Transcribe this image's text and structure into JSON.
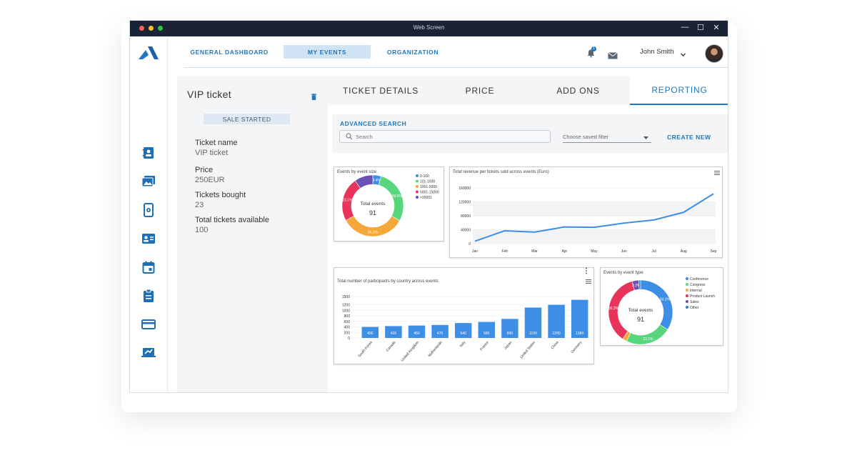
{
  "window": {
    "title": "Web Screen",
    "controls": [
      "—",
      "☐",
      "✕"
    ],
    "dot_colors": [
      "#ff5f57",
      "#febc2e",
      "#28c840"
    ]
  },
  "sidebar": {
    "icons": [
      "contact-book-icon",
      "photo-gallery-icon",
      "device-settings-icon",
      "id-card-icon",
      "calendar-icon",
      "clipboard-icon",
      "credit-card-icon",
      "presentation-icon"
    ]
  },
  "topnav": {
    "items": [
      {
        "label": "GENERAL DASHBOARD",
        "active": false
      },
      {
        "label": "MY EVENTS",
        "active": true
      },
      {
        "label": "ORGANIZATION",
        "active": false
      }
    ],
    "notifications_count": "1",
    "user_name": "John Smith"
  },
  "ticket": {
    "title": "VIP ticket",
    "status": "SALE STARTED",
    "fields": [
      {
        "label": "Ticket name",
        "value": "VIP ticket"
      },
      {
        "label": "Price",
        "value": "250EUR"
      },
      {
        "label": "Tickets bought",
        "value": "23"
      },
      {
        "label": "Total tickets available",
        "value": "100"
      }
    ]
  },
  "tabs": [
    {
      "label": "TICKET DETAILS",
      "active": false
    },
    {
      "label": "PRICE",
      "active": false
    },
    {
      "label": "ADD ONS",
      "active": false
    },
    {
      "label": "REPORTING",
      "active": true
    }
  ],
  "search": {
    "heading": "ADVANCED SEARCH",
    "placeholder": "Search",
    "filter_placeholder": "Choose saved filter",
    "create_label": "CREATE NEW"
  },
  "accent_color": "#1f78c1",
  "chart_data": [
    {
      "type": "pie",
      "title": "Events by event size",
      "center_label": "Total events",
      "center_value": "91",
      "labels": [
        "0-100",
        "101-1000",
        "1001-5000",
        "5001-15000",
        ">15001"
      ],
      "values": [
        4.4,
        28.6,
        34.1,
        23.1,
        9.8
      ],
      "slice_labels": [
        "4.4%",
        "28.6%",
        "34.1%",
        "23.1%",
        ""
      ],
      "colors": [
        "#3d8ee6",
        "#57d67c",
        "#f5a83a",
        "#e8335a",
        "#6a4fb5"
      ],
      "legend": "right"
    },
    {
      "type": "line",
      "title": "Total revenue per tickets sold across events (Euro)",
      "x": [
        "Jan",
        "Feb",
        "Mar",
        "Apr",
        "May",
        "Jun",
        "Jul",
        "Aug",
        "Sep"
      ],
      "series": [
        {
          "values": [
            7000,
            37000,
            33000,
            48000,
            47000,
            59000,
            68000,
            90000,
            143000
          ]
        }
      ],
      "yticks": [
        "0",
        "40000",
        "80000",
        "120000",
        "160000"
      ],
      "ylim": [
        0,
        160000
      ],
      "grid": true
    },
    {
      "type": "bar",
      "title": "Total number of participants by country across events",
      "categories": [
        "South Korea",
        "Canada",
        "United Kingdom",
        "Netherlands",
        "Italy",
        "France",
        "Japan",
        "United States",
        "China",
        "Germany"
      ],
      "values": [
        400,
        430,
        450,
        470,
        540,
        580,
        690,
        1100,
        1200,
        1380
      ],
      "yticks": [
        "0",
        "200",
        "400",
        "600",
        "800",
        "1000",
        "1200",
        "1500"
      ],
      "ylim": [
        0,
        1500
      ],
      "color": "#3d8ee6"
    },
    {
      "type": "pie",
      "title": "Events by event type",
      "center_label": "Total events",
      "center_value": "91",
      "labels": [
        "Conference",
        "Congress",
        "Internal",
        "Product Launch",
        "Sales",
        "Other"
      ],
      "values": [
        34.1,
        23.1,
        2.2,
        36.3,
        3.3,
        1.0
      ],
      "slice_labels": [
        "34.1%",
        "23.1%",
        "",
        "36.3%",
        "3.3%",
        ""
      ],
      "colors": [
        "#3d8ee6",
        "#57d67c",
        "#f5a83a",
        "#e8335a",
        "#6a4fb5",
        "#2f80d0"
      ],
      "legend": "right"
    }
  ]
}
